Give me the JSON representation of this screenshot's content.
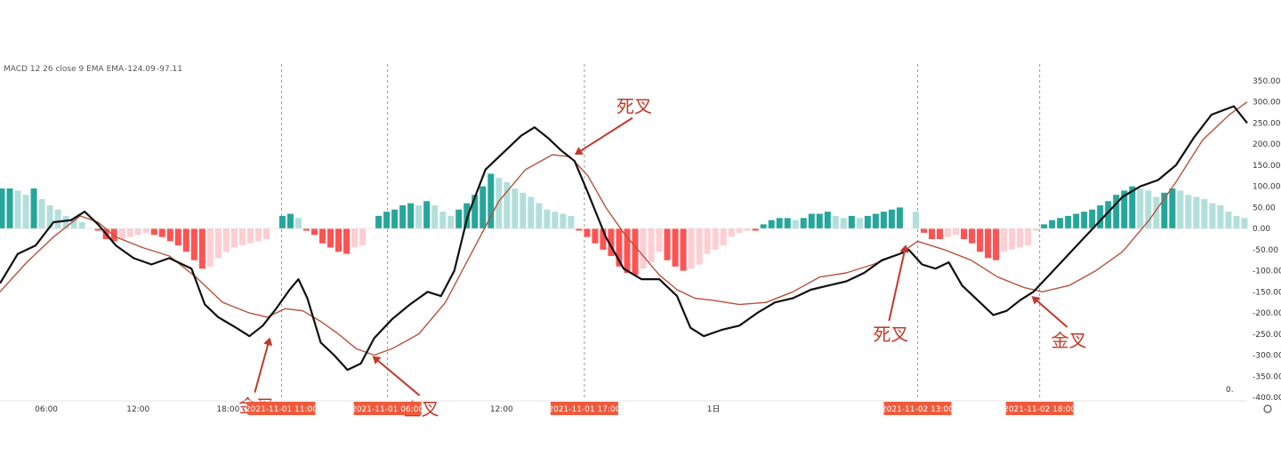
{
  "legend": {
    "label": "MACD 12 26 close 9 EMA EMA",
    "value1": "-124.09",
    "value2": "-97.11"
  },
  "corner_mark": "0.",
  "colors": {
    "macd_line": "#111111",
    "signal_line": "#b5533c",
    "hist_pos_strong": "#26a69a",
    "hist_pos_weak": "#b2dfdb",
    "hist_neg_strong": "#ff5252",
    "hist_neg_weak": "#ffcdd2",
    "annotation": "#c0392b",
    "highlight_bg": "#ef5a3c"
  },
  "chart_data": {
    "type": "line",
    "title": "",
    "xlabel": "",
    "ylabel": "",
    "ylim": [
      -400,
      350
    ],
    "y_ticks": [
      "350.00",
      "300.00",
      "250.00",
      "200.00",
      "150.00",
      "100.00",
      "50.00",
      "0.00",
      "-50.00",
      "-100.00",
      "-150.00",
      "-200.00",
      "-250.00",
      "-300.00",
      "-350.00",
      "-400.00"
    ],
    "x_range": [
      0,
      1400
    ],
    "time_labels": [
      {
        "text": "06:00",
        "x": 52
      },
      {
        "text": "12:00",
        "x": 155
      },
      {
        "text": "18:00",
        "x": 256
      },
      {
        "text": "12:00",
        "x": 563
      },
      {
        "text": "1日",
        "x": 801
      }
    ],
    "highlight_labels": [
      {
        "text": "2021-11-01 11:00",
        "x": 316
      },
      {
        "text": "2021-11-01 06:00",
        "x": 435
      },
      {
        "text": "2021-11-01 17:00",
        "x": 656
      },
      {
        "text": "2021-11-02 13:00",
        "x": 1030
      },
      {
        "text": "2021-11-02 18:00",
        "x": 1167
      }
    ],
    "crossover_lines": [
      316,
      435,
      656,
      1030,
      1167
    ],
    "series": [
      {
        "key": "macd",
        "x": [
          0,
          20,
          40,
          60,
          80,
          95,
          110,
          130,
          150,
          170,
          190,
          200,
          215,
          230,
          245,
          265,
          280,
          295,
          310,
          325,
          335,
          345,
          360,
          375,
          390,
          405,
          420,
          440,
          460,
          480,
          495,
          510,
          525,
          545,
          565,
          585,
          600,
          615,
          630,
          645,
          660,
          680,
          700,
          720,
          740,
          760,
          775,
          790,
          810,
          830,
          850,
          870,
          890,
          910,
          930,
          950,
          970,
          990,
          1010,
          1020,
          1035,
          1050,
          1065,
          1080,
          1100,
          1115,
          1130,
          1145,
          1160,
          1180,
          1200,
          1220,
          1240,
          1260,
          1280,
          1300,
          1320,
          1340,
          1360,
          1385,
          1400
        ],
        "y": [
          -130,
          -60,
          -40,
          15,
          20,
          40,
          10,
          -40,
          -70,
          -85,
          -70,
          -80,
          -95,
          -180,
          -210,
          -235,
          -255,
          -230,
          -190,
          -145,
          -120,
          -165,
          -270,
          -300,
          -335,
          -320,
          -260,
          -215,
          -180,
          -150,
          -160,
          -100,
          30,
          140,
          180,
          220,
          240,
          215,
          185,
          160,
          85,
          -20,
          -95,
          -120,
          -120,
          -160,
          -235,
          -255,
          -240,
          -230,
          -200,
          -175,
          -165,
          -145,
          -135,
          -125,
          -105,
          -75,
          -60,
          -50,
          -85,
          -95,
          -80,
          -135,
          -175,
          -205,
          -195,
          -170,
          -150,
          -105,
          -60,
          -15,
          30,
          75,
          100,
          115,
          150,
          215,
          270,
          290,
          250
        ]
      },
      {
        "key": "signal",
        "x": [
          0,
          30,
          60,
          90,
          110,
          130,
          160,
          190,
          220,
          250,
          280,
          300,
          320,
          340,
          360,
          380,
          400,
          420,
          440,
          470,
          500,
          530,
          560,
          590,
          620,
          640,
          660,
          680,
          700,
          720,
          740,
          760,
          780,
          800,
          830,
          860,
          890,
          920,
          950,
          980,
          1010,
          1030,
          1060,
          1090,
          1120,
          1150,
          1170,
          1200,
          1230,
          1260,
          1290,
          1320,
          1350,
          1380,
          1400
        ],
        "y": [
          -150,
          -80,
          -20,
          30,
          15,
          -20,
          -45,
          -65,
          -115,
          -175,
          -200,
          -210,
          -190,
          -195,
          -220,
          -250,
          -285,
          -300,
          -285,
          -250,
          -175,
          -55,
          65,
          140,
          175,
          170,
          125,
          50,
          -10,
          -60,
          -110,
          -145,
          -165,
          -170,
          -180,
          -175,
          -150,
          -115,
          -105,
          -85,
          -60,
          -30,
          -50,
          -75,
          -115,
          -140,
          -150,
          -135,
          -100,
          -55,
          20,
          110,
          210,
          270,
          300
        ]
      },
      {
        "key": "histogram",
        "x": [
          2,
          11,
          20,
          29,
          38,
          47,
          56,
          65,
          74,
          83,
          92,
          110,
          119,
          128,
          137,
          146,
          155,
          164,
          173,
          182,
          191,
          200,
          209,
          218,
          227,
          236,
          245,
          254,
          263,
          272,
          281,
          290,
          299,
          317,
          326,
          335,
          344,
          353,
          362,
          371,
          380,
          389,
          398,
          407,
          425,
          434,
          443,
          452,
          461,
          470,
          479,
          488,
          497,
          506,
          515,
          524,
          533,
          542,
          551,
          560,
          569,
          578,
          587,
          596,
          605,
          614,
          623,
          632,
          641,
          650,
          659,
          668,
          677,
          686,
          695,
          704,
          713,
          722,
          731,
          740,
          749,
          758,
          767,
          776,
          785,
          794,
          803,
          812,
          821,
          830,
          839,
          848,
          857,
          866,
          875,
          884,
          893,
          902,
          911,
          920,
          929,
          938,
          947,
          956,
          965,
          974,
          983,
          992,
          1001,
          1010,
          1028,
          1037,
          1046,
          1055,
          1064,
          1073,
          1082,
          1091,
          1100,
          1109,
          1118,
          1127,
          1136,
          1145,
          1154,
          1163,
          1172,
          1181,
          1190,
          1199,
          1208,
          1217,
          1226,
          1235,
          1244,
          1253,
          1262,
          1271,
          1280,
          1289,
          1298,
          1307,
          1316,
          1325,
          1334,
          1343,
          1352,
          1361,
          1370,
          1379,
          1388,
          1397
        ],
        "y": [
          95,
          95,
          90,
          80,
          95,
          70,
          55,
          45,
          30,
          25,
          15,
          -5,
          -25,
          -30,
          -25,
          -20,
          -15,
          -10,
          -15,
          -20,
          -30,
          -40,
          -55,
          -75,
          -95,
          -90,
          -70,
          -55,
          -45,
          -40,
          -35,
          -30,
          -25,
          30,
          35,
          25,
          -5,
          -15,
          -35,
          -45,
          -55,
          -60,
          -45,
          -40,
          30,
          40,
          45,
          55,
          60,
          55,
          65,
          55,
          40,
          30,
          45,
          60,
          80,
          100,
          130,
          120,
          110,
          95,
          85,
          75,
          60,
          45,
          40,
          35,
          30,
          -5,
          -20,
          -35,
          -50,
          -65,
          -90,
          -105,
          -110,
          -95,
          -80,
          -55,
          -75,
          -90,
          -100,
          -95,
          -85,
          -60,
          -50,
          -40,
          -20,
          -10,
          -5,
          -5,
          10,
          20,
          25,
          25,
          20,
          25,
          35,
          35,
          40,
          30,
          25,
          30,
          25,
          30,
          35,
          40,
          45,
          50,
          40,
          -10,
          -25,
          -25,
          -20,
          -15,
          -25,
          -35,
          -55,
          -70,
          -75,
          -55,
          -50,
          -45,
          -40,
          -5,
          10,
          20,
          25,
          30,
          35,
          40,
          45,
          55,
          65,
          80,
          90,
          100,
          95,
          90,
          75,
          85,
          95,
          90,
          80,
          75,
          70,
          60,
          55,
          40,
          30,
          25
        ]
      }
    ],
    "annotations": [
      {
        "text": "死叉",
        "x_text": 692,
        "y_text": 275,
        "x_to": 645,
        "y_to": 175
      },
      {
        "text": "金叉",
        "x_text": 268,
        "y_text": -435,
        "x_to": 303,
        "y_to": -258
      },
      {
        "text": "金叉",
        "x_text": 453,
        "y_text": -442,
        "x_to": 418,
        "y_to": -302
      },
      {
        "text": "死叉",
        "x_text": 980,
        "y_text": -265,
        "x_to": 1017,
        "y_to": -38
      },
      {
        "text": "金叉",
        "x_text": 1180,
        "y_text": -280,
        "x_to": 1158,
        "y_to": -160
      }
    ]
  }
}
